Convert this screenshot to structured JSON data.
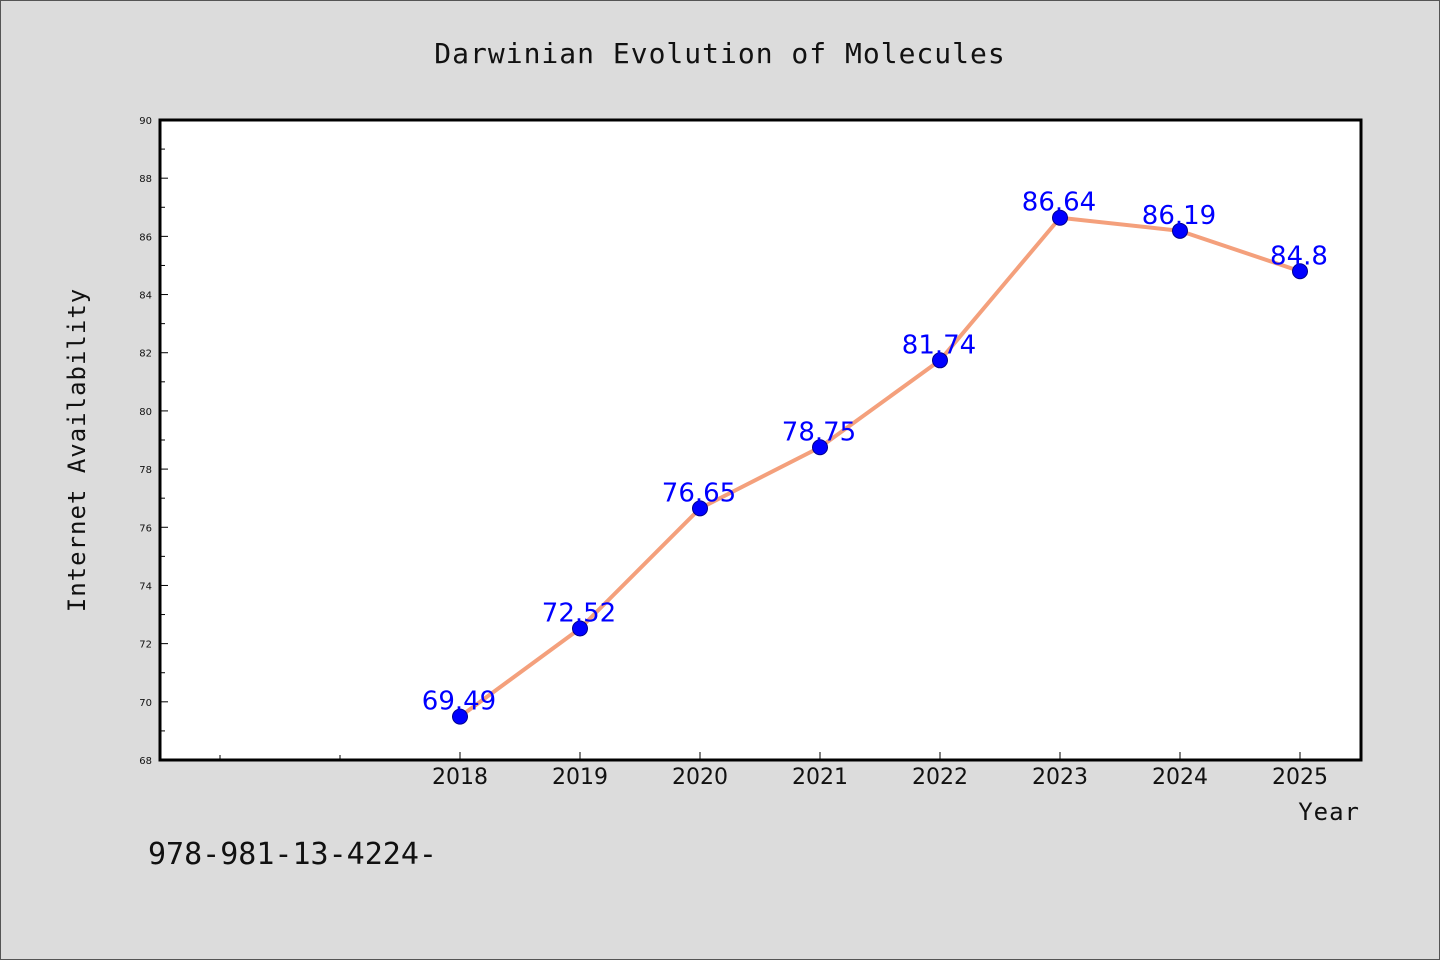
{
  "chart_data": {
    "type": "line",
    "title": "Darwinian Evolution of Molecules",
    "xlabel": "Year",
    "ylabel": "Internet Availability",
    "x": [
      "2018",
      "2019",
      "2020",
      "2021",
      "2022",
      "2023",
      "2024",
      "2025"
    ],
    "series": [
      {
        "values": [
          69.49,
          72.52,
          76.65,
          78.75,
          81.74,
          86.64,
          86.19,
          84.8
        ],
        "line_color": "#f4a07c",
        "marker_color": "#0000ff"
      }
    ],
    "data_labels": [
      "69.49",
      "72.52",
      "76.65",
      "78.75",
      "81.74",
      "86.64",
      "86.19",
      "84.8"
    ],
    "ylim": [
      68,
      90
    ],
    "yticks": [
      68,
      70,
      72,
      74,
      76,
      78,
      80,
      82,
      84,
      86,
      88,
      90
    ],
    "grid": false,
    "legend": "none"
  },
  "footnote": "978-981-13-4224-",
  "colors": {
    "background": "#dcdcdc",
    "plot_area": "#ffffff",
    "data_label": "#0000ff"
  }
}
